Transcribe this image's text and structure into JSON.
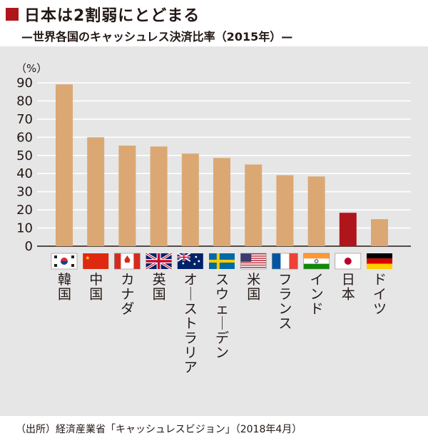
{
  "header": {
    "title": "日本は2割弱にとどまる",
    "subtitle": "—世界各国のキャッシュレス決済比率（2015年）—"
  },
  "chart_data": {
    "type": "bar",
    "y_unit_label": "（%）",
    "ylim": [
      0,
      90
    ],
    "yticks": [
      0,
      10,
      20,
      30,
      40,
      50,
      60,
      70,
      80,
      90
    ],
    "grid": true,
    "categories": [
      "韓国",
      "中国",
      "カナダ",
      "英国",
      "オーストラリア",
      "スウェーデン",
      "米国",
      "フランス",
      "インド",
      "日本",
      "ドイツ"
    ],
    "values": [
      89.1,
      60.0,
      55.4,
      54.9,
      51.0,
      48.6,
      45.0,
      39.1,
      38.4,
      18.4,
      14.9
    ],
    "bar_colors": [
      "#dba873",
      "#dba873",
      "#dba873",
      "#dba873",
      "#dba873",
      "#dba873",
      "#dba873",
      "#dba873",
      "#dba873",
      "#b0151b",
      "#dba873"
    ],
    "flags": [
      "korea-flag-icon",
      "china-flag-icon",
      "canada-flag-icon",
      "uk-flag-icon",
      "australia-flag-icon",
      "sweden-flag-icon",
      "usa-flag-icon",
      "france-flag-icon",
      "india-flag-icon",
      "japan-flag-icon",
      "germany-flag-icon"
    ]
  },
  "footer": {
    "source": "（出所）経済産業省「キャッシュレスビジョン」（2018年4月）"
  },
  "colors": {
    "accent": "#b0151b",
    "bar": "#dba873",
    "panel": "#e6e6e7"
  }
}
